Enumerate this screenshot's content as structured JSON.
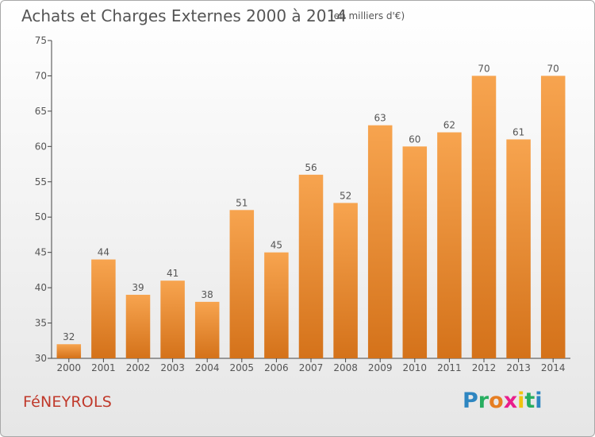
{
  "title": "Achats et Charges Externes 2000 à 2014",
  "subtitle": "(en milliers d'€)",
  "town": "FéNEYROLS",
  "logo": {
    "letters": [
      "P",
      "r",
      "o",
      "x",
      "i",
      "t",
      "i"
    ],
    "colors": [
      "#2e86c1",
      "#27ae60",
      "#e67e22",
      "#e91e8c",
      "#f1c40f",
      "#27ae60",
      "#2e86c1"
    ]
  },
  "colors": {
    "bar_top": "#f7a44f",
    "bar_bottom": "#d4721a",
    "text": "#555555",
    "town": "#c0392b"
  },
  "chart_data": {
    "type": "bar",
    "categories": [
      "2000",
      "2001",
      "2002",
      "2003",
      "2004",
      "2005",
      "2006",
      "2007",
      "2008",
      "2009",
      "2010",
      "2011",
      "2012",
      "2013",
      "2014"
    ],
    "values": [
      32,
      44,
      39,
      41,
      38,
      51,
      45,
      56,
      52,
      63,
      60,
      62,
      70,
      61,
      70
    ],
    "ylim": [
      30,
      75
    ],
    "yticks": [
      30,
      35,
      40,
      45,
      50,
      55,
      60,
      65,
      70,
      75
    ],
    "grid": false,
    "data_labels": true
  }
}
